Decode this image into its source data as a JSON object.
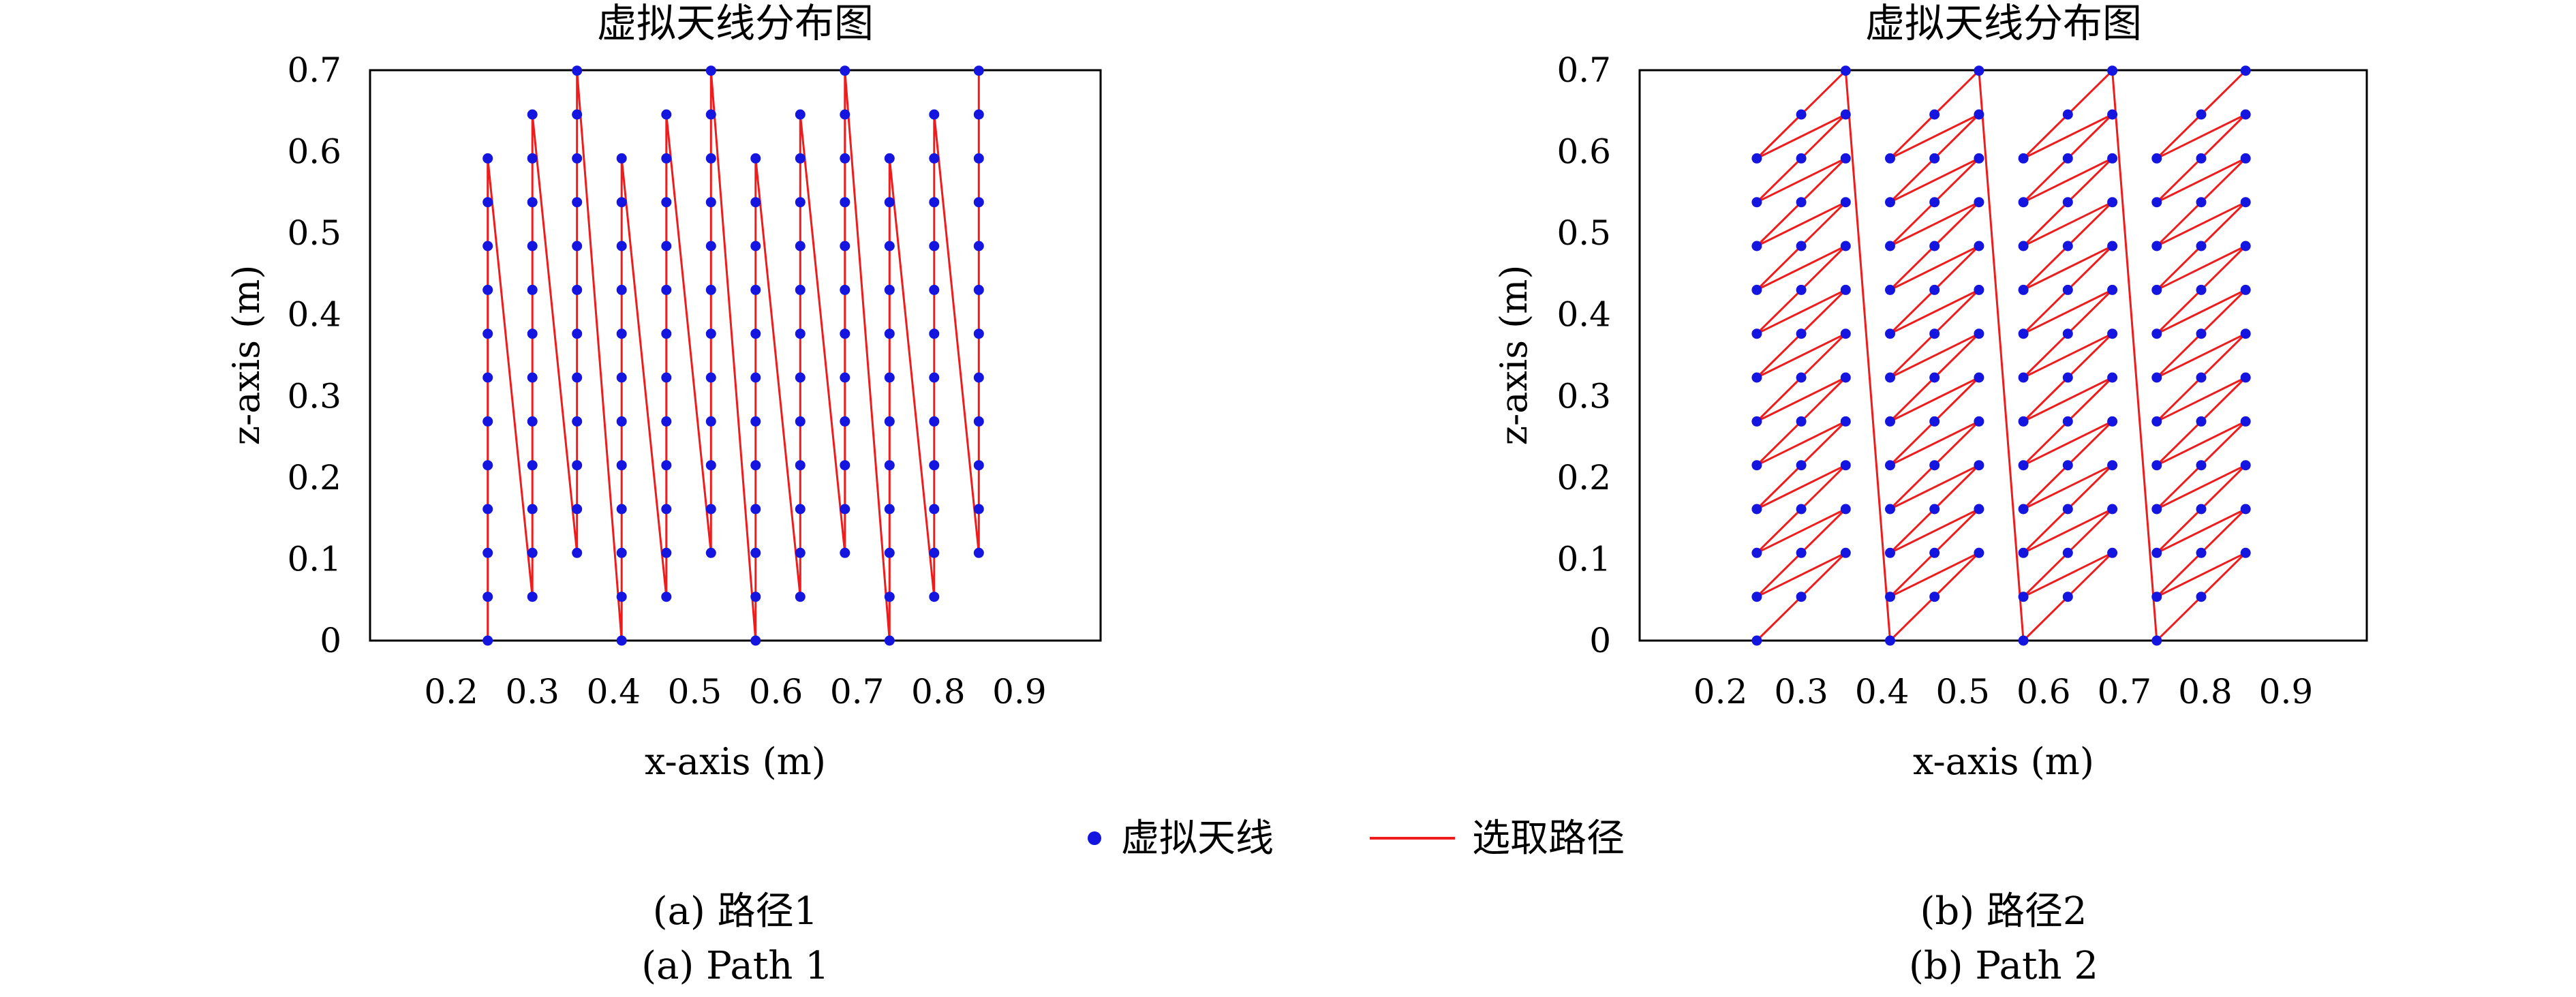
{
  "legend": {
    "marker_label": "虚拟天线",
    "line_label": "选取路径",
    "marker_color": "#1515e0",
    "line_color": "#ee1c1c"
  },
  "chart_data": [
    {
      "type": "scatter",
      "title": "虚拟天线分布图",
      "xlabel": "x-axis (m)",
      "ylabel": "z-axis (m)",
      "xlim": [
        0.1,
        1.0
      ],
      "ylim": [
        0,
        0.7
      ],
      "xticks": [
        0.2,
        0.3,
        0.4,
        0.5,
        0.6,
        0.7,
        0.8,
        0.9
      ],
      "yticks": [
        0,
        0.1,
        0.2,
        0.3,
        0.4,
        0.5,
        0.6,
        0.7
      ],
      "grid": false,
      "caption_cn": "(a) 路径1",
      "caption_en": "(a) Path 1",
      "columns_x": [
        0.245,
        0.3,
        0.355,
        0.41,
        0.465,
        0.52,
        0.575,
        0.63,
        0.685,
        0.74,
        0.795,
        0.85
      ],
      "point_spacing_z": 0.0538,
      "series": [
        {
          "name": "虚拟天线",
          "x": [
            0.245,
            0.245,
            0.245,
            0.245,
            0.245,
            0.245,
            0.245,
            0.245,
            0.245,
            0.245,
            0.245,
            0.245,
            0.3,
            0.3,
            0.3,
            0.3,
            0.3,
            0.3,
            0.3,
            0.3,
            0.3,
            0.3,
            0.3,
            0.3,
            0.355,
            0.355,
            0.355,
            0.355,
            0.355,
            0.355,
            0.355,
            0.355,
            0.355,
            0.355,
            0.355,
            0.355,
            0.41,
            0.41,
            0.41,
            0.41,
            0.41,
            0.41,
            0.41,
            0.41,
            0.41,
            0.41,
            0.41,
            0.41,
            0.465,
            0.465,
            0.465,
            0.465,
            0.465,
            0.465,
            0.465,
            0.465,
            0.465,
            0.465,
            0.465,
            0.465,
            0.52,
            0.52,
            0.52,
            0.52,
            0.52,
            0.52,
            0.52,
            0.52,
            0.52,
            0.52,
            0.52,
            0.52,
            0.575,
            0.575,
            0.575,
            0.575,
            0.575,
            0.575,
            0.575,
            0.575,
            0.575,
            0.575,
            0.575,
            0.575,
            0.63,
            0.63,
            0.63,
            0.63,
            0.63,
            0.63,
            0.63,
            0.63,
            0.63,
            0.63,
            0.63,
            0.63,
            0.685,
            0.685,
            0.685,
            0.685,
            0.685,
            0.685,
            0.685,
            0.685,
            0.685,
            0.685,
            0.685,
            0.685,
            0.74,
            0.74,
            0.74,
            0.74,
            0.74,
            0.74,
            0.74,
            0.74,
            0.74,
            0.74,
            0.74,
            0.74,
            0.795,
            0.795,
            0.795,
            0.795,
            0.795,
            0.795,
            0.795,
            0.795,
            0.795,
            0.795,
            0.795,
            0.795,
            0.85,
            0.85,
            0.85,
            0.85,
            0.85,
            0.85,
            0.85,
            0.85,
            0.85,
            0.85,
            0.85,
            0.85
          ],
          "z": [
            0,
            0.054,
            0.108,
            0.161,
            0.215,
            0.269,
            0.323,
            0.377,
            0.43,
            0.484,
            0.538,
            0.592,
            0.054,
            0.108,
            0.161,
            0.215,
            0.269,
            0.323,
            0.377,
            0.43,
            0.484,
            0.538,
            0.592,
            0.646,
            0.108,
            0.161,
            0.215,
            0.269,
            0.323,
            0.377,
            0.43,
            0.484,
            0.538,
            0.592,
            0.646,
            0.7,
            0,
            0.054,
            0.108,
            0.161,
            0.215,
            0.269,
            0.323,
            0.377,
            0.43,
            0.484,
            0.538,
            0.592,
            0.054,
            0.108,
            0.161,
            0.215,
            0.269,
            0.323,
            0.377,
            0.43,
            0.484,
            0.538,
            0.592,
            0.646,
            0.108,
            0.161,
            0.215,
            0.269,
            0.323,
            0.377,
            0.43,
            0.484,
            0.538,
            0.592,
            0.646,
            0.7,
            0,
            0.054,
            0.108,
            0.161,
            0.215,
            0.269,
            0.323,
            0.377,
            0.43,
            0.484,
            0.538,
            0.592,
            0.054,
            0.108,
            0.161,
            0.215,
            0.269,
            0.323,
            0.377,
            0.43,
            0.484,
            0.538,
            0.592,
            0.646,
            0.108,
            0.161,
            0.215,
            0.269,
            0.323,
            0.377,
            0.43,
            0.484,
            0.538,
            0.592,
            0.646,
            0.7,
            0,
            0.054,
            0.108,
            0.161,
            0.215,
            0.269,
            0.323,
            0.377,
            0.43,
            0.484,
            0.538,
            0.592,
            0.054,
            0.108,
            0.161,
            0.215,
            0.269,
            0.323,
            0.377,
            0.43,
            0.484,
            0.538,
            0.592,
            0.646,
            0.108,
            0.161,
            0.215,
            0.269,
            0.323,
            0.377,
            0.43,
            0.484,
            0.538,
            0.592,
            0.646,
            0.7
          ]
        },
        {
          "name": "选取路径",
          "path_order": "column-wise: bottom to top in each column, then jump to the bottom of the next column"
        }
      ]
    },
    {
      "type": "scatter",
      "title": "虚拟天线分布图",
      "xlabel": "x-axis (m)",
      "ylabel": "z-axis (m)",
      "xlim": [
        0.1,
        1.0
      ],
      "ylim": [
        0,
        0.7
      ],
      "xticks": [
        0.2,
        0.3,
        0.4,
        0.5,
        0.6,
        0.7,
        0.8,
        0.9
      ],
      "yticks": [
        0,
        0.1,
        0.2,
        0.3,
        0.4,
        0.5,
        0.6,
        0.7
      ],
      "grid": false,
      "caption_cn": "(b) 路径2",
      "caption_en": "(b) Path 2",
      "columns_x": [
        0.245,
        0.3,
        0.355,
        0.41,
        0.465,
        0.52,
        0.575,
        0.63,
        0.685,
        0.74,
        0.795,
        0.85
      ],
      "point_spacing_z": 0.0538,
      "series": [
        {
          "name": "虚拟天线",
          "note": "same 144 antenna positions as panel (a)"
        },
        {
          "name": "选取路径",
          "path_order": "groups of three columns: diagonal steps left-bottom to right-top within each group, then jump to the next group"
        }
      ]
    }
  ]
}
